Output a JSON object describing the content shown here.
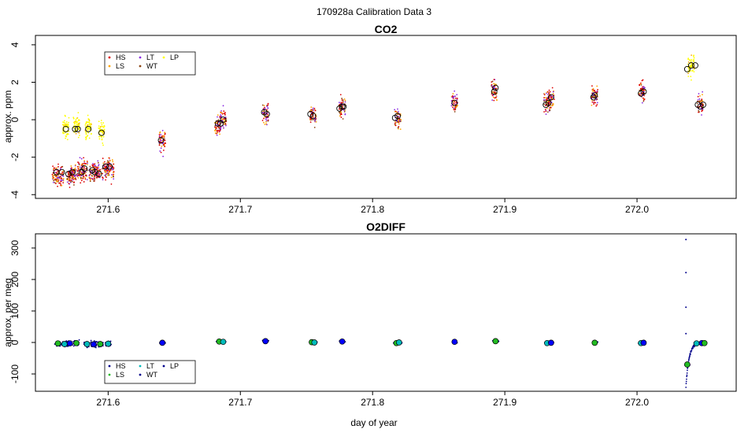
{
  "figure": {
    "title": "170928a   Calibration Data 3"
  },
  "legend_labels": [
    "HS",
    "LT",
    "LP",
    "LS",
    "WT"
  ],
  "colors": {
    "HS": "#dd0000",
    "LS": "#ffa500",
    "LT": "#8a2be2",
    "WT": "#8b4513",
    "LP": "#ffff00",
    "o2_dots": "#00008b",
    "o2_fill_a": "#22bb22",
    "o2_fill_b": "#00bbbb",
    "o2_fill_c": "#0000ff"
  },
  "chart_data": [
    {
      "type": "scatter",
      "title": "CO2",
      "xlabel": "",
      "ylabel": "approx. ppm",
      "xlim": [
        271.545,
        272.075
      ],
      "ylim": [
        -4.2,
        4.5
      ],
      "x_ticks": [
        "271.6",
        "271.7",
        "271.8",
        "271.9",
        "272.0"
      ],
      "y_ticks": [
        "-4",
        "-2",
        "0",
        "2",
        "4"
      ],
      "legend": {
        "placement": "top-left",
        "entries": [
          "HS",
          "LT",
          "LP",
          "LS",
          "WT"
        ]
      },
      "means": [
        {
          "x": 271.561,
          "y": -2.8
        },
        {
          "x": 271.565,
          "y": -2.8
        },
        {
          "x": 271.568,
          "y": -0.5
        },
        {
          "x": 271.57,
          "y": -2.9
        },
        {
          "x": 271.573,
          "y": -2.8
        },
        {
          "x": 271.575,
          "y": -0.5
        },
        {
          "x": 271.577,
          "y": -0.5
        },
        {
          "x": 271.58,
          "y": -2.8
        },
        {
          "x": 271.582,
          "y": -2.6
        },
        {
          "x": 271.585,
          "y": -0.5
        },
        {
          "x": 271.588,
          "y": -2.7
        },
        {
          "x": 271.59,
          "y": -2.8
        },
        {
          "x": 271.593,
          "y": -2.9
        },
        {
          "x": 271.595,
          "y": -0.7
        },
        {
          "x": 271.598,
          "y": -2.5
        },
        {
          "x": 271.601,
          "y": -2.5
        },
        {
          "x": 271.64,
          "y": -1.1
        },
        {
          "x": 271.683,
          "y": -0.2
        },
        {
          "x": 271.685,
          "y": -0.2
        },
        {
          "x": 271.687,
          "y": 0.0
        },
        {
          "x": 271.718,
          "y": 0.4
        },
        {
          "x": 271.72,
          "y": 0.3
        },
        {
          "x": 271.753,
          "y": 0.3
        },
        {
          "x": 271.755,
          "y": 0.2
        },
        {
          "x": 271.775,
          "y": 0.6
        },
        {
          "x": 271.777,
          "y": 0.7
        },
        {
          "x": 271.778,
          "y": 0.7
        },
        {
          "x": 271.817,
          "y": 0.1
        },
        {
          "x": 271.819,
          "y": 0.2
        },
        {
          "x": 271.862,
          "y": 0.9
        },
        {
          "x": 271.892,
          "y": 1.5
        },
        {
          "x": 271.893,
          "y": 1.7
        },
        {
          "x": 271.931,
          "y": 0.8
        },
        {
          "x": 271.933,
          "y": 0.9
        },
        {
          "x": 271.935,
          "y": 1.2
        },
        {
          "x": 271.967,
          "y": 1.2
        },
        {
          "x": 271.968,
          "y": 1.3
        },
        {
          "x": 272.003,
          "y": 1.4
        },
        {
          "x": 272.005,
          "y": 1.5
        },
        {
          "x": 272.038,
          "y": 2.7
        },
        {
          "x": 272.041,
          "y": 2.9
        },
        {
          "x": 272.044,
          "y": 2.9
        },
        {
          "x": 272.046,
          "y": 0.8
        },
        {
          "x": 272.048,
          "y": 0.7
        },
        {
          "x": 272.05,
          "y": 0.8
        }
      ],
      "scatter_clusters": [
        {
          "x": 271.56,
          "y": -3.0,
          "c": "LT"
        },
        {
          "x": 271.564,
          "y": -3.0,
          "c": "HS"
        },
        {
          "x": 271.568,
          "y": -0.4,
          "c": "LP"
        },
        {
          "x": 271.571,
          "y": -3.0,
          "c": "HS"
        },
        {
          "x": 271.574,
          "y": -2.9,
          "c": "LT"
        },
        {
          "x": 271.576,
          "y": -0.4,
          "c": "LP"
        },
        {
          "x": 271.579,
          "y": -2.8,
          "c": "HS"
        },
        {
          "x": 271.582,
          "y": -2.7,
          "c": "LT"
        },
        {
          "x": 271.585,
          "y": -0.4,
          "c": "LP"
        },
        {
          "x": 271.588,
          "y": -2.8,
          "c": "LT"
        },
        {
          "x": 271.592,
          "y": -2.8,
          "c": "HS"
        },
        {
          "x": 271.595,
          "y": -0.6,
          "c": "LP"
        },
        {
          "x": 271.598,
          "y": -2.6,
          "c": "HS"
        },
        {
          "x": 271.602,
          "y": -2.6,
          "c": "LT"
        },
        {
          "x": 271.641,
          "y": -1.1,
          "c": "LS"
        },
        {
          "x": 271.683,
          "y": -0.3,
          "c": "HS"
        },
        {
          "x": 271.687,
          "y": 0.0,
          "c": "LT"
        },
        {
          "x": 271.719,
          "y": 0.3,
          "c": "LS"
        },
        {
          "x": 271.755,
          "y": 0.2,
          "c": "HS"
        },
        {
          "x": 271.777,
          "y": 0.7,
          "c": "LS"
        },
        {
          "x": 271.819,
          "y": 0.1,
          "c": "LT"
        },
        {
          "x": 271.862,
          "y": 0.9,
          "c": "LS"
        },
        {
          "x": 271.892,
          "y": 1.6,
          "c": "LS"
        },
        {
          "x": 271.932,
          "y": 0.9,
          "c": "HS"
        },
        {
          "x": 271.935,
          "y": 1.1,
          "c": "LT"
        },
        {
          "x": 271.968,
          "y": 1.3,
          "c": "LS"
        },
        {
          "x": 272.004,
          "y": 1.5,
          "c": "HS"
        },
        {
          "x": 272.041,
          "y": 2.9,
          "c": "LP"
        },
        {
          "x": 272.048,
          "y": 0.8,
          "c": "LT"
        }
      ]
    },
    {
      "type": "scatter",
      "title": "O2DIFF",
      "xlabel": "day of year",
      "ylabel": "approx. per meg",
      "xlim": [
        271.545,
        272.075
      ],
      "ylim": [
        -155,
        345
      ],
      "x_ticks": [
        "271.6",
        "271.7",
        "271.8",
        "271.9",
        "272.0"
      ],
      "y_ticks": [
        "-100",
        "0",
        "100",
        "200",
        "300"
      ],
      "legend": {
        "placement": "bottom-left",
        "entries": [
          "HS",
          "LT",
          "LP",
          "LS",
          "WT"
        ]
      },
      "means": [
        {
          "x": 271.562,
          "y": -3
        },
        {
          "x": 271.567,
          "y": -5
        },
        {
          "x": 271.571,
          "y": -3
        },
        {
          "x": 271.576,
          "y": -2
        },
        {
          "x": 271.584,
          "y": -5
        },
        {
          "x": 271.589,
          "y": -6
        },
        {
          "x": 271.594,
          "y": -5
        },
        {
          "x": 271.6,
          "y": -4
        },
        {
          "x": 271.641,
          "y": -1
        },
        {
          "x": 271.684,
          "y": 3
        },
        {
          "x": 271.687,
          "y": 2
        },
        {
          "x": 271.719,
          "y": 4
        },
        {
          "x": 271.754,
          "y": 1
        },
        {
          "x": 271.756,
          "y": 0
        },
        {
          "x": 271.777,
          "y": 3
        },
        {
          "x": 271.818,
          "y": -2
        },
        {
          "x": 271.82,
          "y": 0
        },
        {
          "x": 271.862,
          "y": 2
        },
        {
          "x": 271.893,
          "y": 4
        },
        {
          "x": 271.932,
          "y": -2
        },
        {
          "x": 271.935,
          "y": -1
        },
        {
          "x": 271.968,
          "y": -1
        },
        {
          "x": 272.003,
          "y": -2
        },
        {
          "x": 272.005,
          "y": -1
        },
        {
          "x": 272.038,
          "y": -70
        },
        {
          "x": 272.045,
          "y": -3
        },
        {
          "x": 272.049,
          "y": -2
        },
        {
          "x": 272.051,
          "y": -2
        }
      ],
      "outliers": [
        {
          "x": 272.037,
          "y": 327
        },
        {
          "x": 272.037,
          "y": 222
        },
        {
          "x": 272.037,
          "y": 112
        },
        {
          "x": 272.037,
          "y": 28
        }
      ]
    }
  ]
}
